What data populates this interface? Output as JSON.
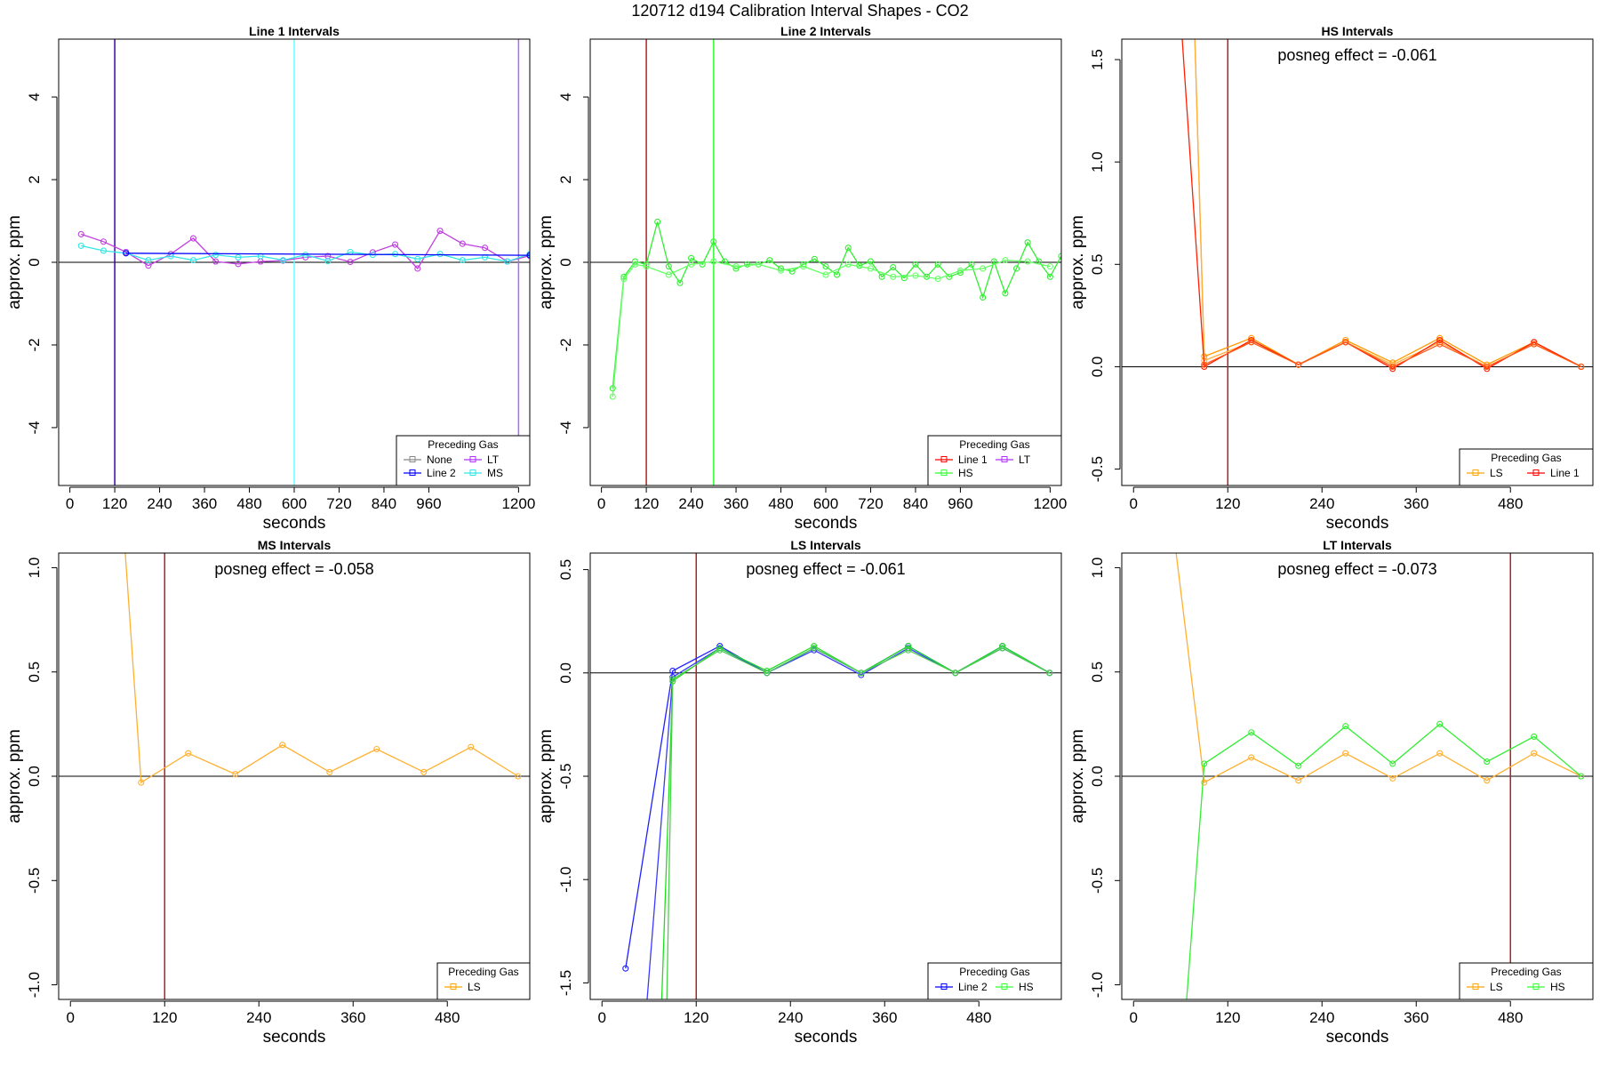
{
  "figure_title": "120712  d194   Calibration Interval Shapes - CO2",
  "chart_data": [
    {
      "type": "line",
      "title": "Line 1 Intervals",
      "xlabel": "seconds",
      "ylabel": "approx. ppm",
      "xlim": [
        -30,
        1230
      ],
      "ylim": [
        -5.4,
        5.4
      ],
      "xticks": [
        0,
        120,
        240,
        360,
        480,
        600,
        720,
        840,
        960,
        1200
      ],
      "yticks": [
        -4,
        -2,
        0,
        2,
        4
      ],
      "annotation": "",
      "vlines": [
        {
          "x": 120,
          "color": "#3f00b3"
        },
        {
          "x": 600,
          "color": "#66ffff"
        },
        {
          "x": 1200,
          "color": "#b266ff"
        }
      ],
      "legend": {
        "title": "Preceding Gas",
        "position": "bottom-right",
        "columns": 2,
        "entries": [
          {
            "label": "None",
            "color": "#888888"
          },
          {
            "label": "Line 2",
            "color": "#0000ff"
          },
          {
            "label": "LT",
            "color": "#b030ff"
          },
          {
            "label": "MS",
            "color": "#33e6e6"
          }
        ]
      },
      "series": [
        {
          "color": "#bf3fdf",
          "x": [
            30,
            90,
            150,
            210,
            270,
            330,
            390,
            450,
            510,
            570,
            630,
            690,
            750,
            810,
            870,
            930,
            990,
            1050,
            1110,
            1170,
            1230
          ],
          "y": [
            0.68,
            0.5,
            0.25,
            -0.08,
            0.2,
            0.58,
            0.02,
            -0.04,
            0.02,
            0.04,
            0.12,
            0.15,
            0.01,
            0.24,
            0.43,
            -0.15,
            0.76,
            0.45,
            0.35,
            0.02,
            0.16
          ]
        },
        {
          "color": "#33e6e6",
          "x": [
            30,
            90,
            150,
            210,
            270,
            330,
            390,
            450,
            510,
            570,
            630,
            690,
            750,
            810,
            870,
            930,
            990,
            1050,
            1110,
            1170,
            1230
          ],
          "y": [
            0.4,
            0.28,
            0.22,
            0.05,
            0.15,
            0.05,
            0.18,
            0.12,
            0.15,
            0.05,
            0.18,
            0.03,
            0.25,
            0.18,
            0.2,
            0.08,
            0.2,
            0.05,
            0.12,
            0.02,
            0.2
          ]
        },
        {
          "color": "#0000ff",
          "x": [
            150,
            1230
          ],
          "y": [
            0.22,
            0.17
          ]
        }
      ]
    },
    {
      "type": "line",
      "title": "Line 2 Intervals",
      "xlabel": "seconds",
      "ylabel": "approx. ppm",
      "xlim": [
        -30,
        1230
      ],
      "ylim": [
        -5.4,
        5.4
      ],
      "xticks": [
        0,
        120,
        240,
        360,
        480,
        600,
        720,
        840,
        960,
        1200
      ],
      "yticks": [
        -4,
        -2,
        0,
        2,
        4
      ],
      "annotation": "",
      "vlines": [
        {
          "x": 120,
          "color": "#b22222"
        },
        {
          "x": 300,
          "color": "#33ff33"
        }
      ],
      "legend": {
        "title": "Preceding Gas",
        "position": "bottom-right",
        "columns": 2,
        "entries": [
          {
            "label": "Line 1",
            "color": "#ff0000"
          },
          {
            "label": "HS",
            "color": "#33ff33"
          },
          {
            "label": "LT",
            "color": "#b030ff"
          }
        ]
      },
      "series": [
        {
          "color": "#33ee33",
          "x": [
            30,
            60,
            90,
            120,
            150,
            180,
            210,
            240,
            270,
            300,
            330,
            360,
            390,
            420,
            450,
            480,
            510,
            540,
            570,
            600,
            630,
            660,
            690,
            720,
            750,
            780,
            810,
            840,
            870,
            900,
            930,
            960,
            990,
            1020,
            1050,
            1080,
            1110,
            1140,
            1170,
            1200,
            1230
          ],
          "y": [
            -3.05,
            -0.35,
            0.02,
            -0.05,
            0.98,
            -0.1,
            -0.5,
            0.1,
            -0.05,
            0.5,
            0.02,
            -0.15,
            -0.05,
            -0.05,
            0.05,
            -0.15,
            -0.22,
            -0.05,
            0.08,
            -0.1,
            -0.3,
            0.35,
            -0.08,
            0.02,
            -0.35,
            -0.12,
            -0.38,
            -0.05,
            -0.35,
            -0.05,
            -0.35,
            -0.25,
            -0.05,
            -0.85,
            0.02,
            -0.75,
            -0.15,
            0.48,
            0.02,
            -0.35,
            0.15
          ]
        },
        {
          "color": "#66ff66",
          "x": [
            30,
            60,
            90,
            120,
            180,
            240,
            300,
            360,
            420,
            480,
            540,
            600,
            660,
            720,
            780,
            840,
            900,
            960,
            1020,
            1080,
            1140,
            1200
          ],
          "y": [
            -3.25,
            -0.4,
            -0.05,
            -0.1,
            -0.3,
            -0.05,
            0.02,
            -0.1,
            -0.05,
            -0.2,
            -0.1,
            -0.3,
            -0.05,
            -0.15,
            -0.35,
            -0.32,
            -0.4,
            -0.2,
            -0.15,
            0.05,
            0.02,
            -0.1
          ]
        }
      ]
    },
    {
      "type": "line",
      "title": "HS Intervals",
      "xlabel": "seconds",
      "ylabel": "approx. ppm",
      "xlim": [
        -15,
        585
      ],
      "ylim": [
        -0.58,
        1.6
      ],
      "xticks": [
        0,
        120,
        240,
        360,
        480
      ],
      "yticks": [
        -0.5,
        0.0,
        0.5,
        1.0,
        1.5
      ],
      "annotation": "posneg effect = -0.061",
      "vlines": [
        {
          "x": 120,
          "color": "#b22222"
        }
      ],
      "legend": {
        "title": "Preceding Gas",
        "position": "bottom-right",
        "columns": 2,
        "entries": [
          {
            "label": "LS",
            "color": "#ffa500"
          },
          {
            "label": "Line 1",
            "color": "#ff0000"
          }
        ]
      },
      "series": [
        {
          "color": "#ff9900",
          "x": [
            75,
            90,
            150,
            210,
            270,
            330,
            390,
            450,
            510,
            570
          ],
          "y": [
            2.0,
            0.05,
            0.14,
            0.01,
            0.13,
            0.02,
            0.14,
            0.01,
            0.12,
            0.0
          ]
        },
        {
          "color": "#ffb040",
          "x": [
            75,
            90,
            150,
            210,
            270,
            330,
            390,
            450,
            510,
            570
          ],
          "y": [
            2.0,
            0.03,
            0.12,
            0.01,
            0.12,
            0.01,
            0.12,
            0.0,
            0.11,
            0.0
          ]
        },
        {
          "color": "#ff2000",
          "x": [
            55,
            90,
            150,
            210,
            270,
            330,
            390,
            450,
            510,
            570
          ],
          "y": [
            2.0,
            0.0,
            0.13,
            0.01,
            0.12,
            -0.01,
            0.13,
            -0.01,
            0.12,
            0.0
          ]
        },
        {
          "color": "#ff5a1a",
          "x": [
            90,
            150,
            210,
            270,
            330,
            390,
            450,
            510,
            570
          ],
          "y": [
            0.01,
            0.12,
            0.01,
            0.12,
            0.0,
            0.11,
            0.0,
            0.11,
            0.0
          ]
        }
      ]
    },
    {
      "type": "line",
      "title": "MS Intervals",
      "xlabel": "seconds",
      "ylabel": "approx. ppm",
      "xlim": [
        -15,
        585
      ],
      "ylim": [
        -1.07,
        1.07
      ],
      "xticks": [
        0,
        120,
        240,
        360,
        480
      ],
      "yticks": [
        -1.0,
        -0.5,
        0.0,
        0.5,
        1.0
      ],
      "annotation": "posneg effect = -0.058",
      "vlines": [
        {
          "x": 120,
          "color": "#b22222"
        }
      ],
      "legend": {
        "title": "Preceding Gas",
        "position": "bottom-right",
        "columns": 1,
        "entries": [
          {
            "label": "LS",
            "color": "#ffa500"
          }
        ]
      },
      "series": [
        {
          "color": "#ffb030",
          "x": [
            60,
            90,
            150,
            210,
            270,
            330,
            390,
            450,
            510,
            570
          ],
          "y": [
            1.6,
            -0.03,
            0.11,
            0.01,
            0.15,
            0.02,
            0.13,
            0.02,
            0.14,
            0.0
          ]
        }
      ]
    },
    {
      "type": "line",
      "title": "LS Intervals",
      "xlabel": "seconds",
      "ylabel": "approx. ppm",
      "xlim": [
        -15,
        585
      ],
      "ylim": [
        -1.58,
        0.58
      ],
      "xticks": [
        0,
        120,
        240,
        360,
        480
      ],
      "yticks": [
        -1.5,
        -1.0,
        -0.5,
        0.0,
        0.5
      ],
      "annotation": "posneg effect = -0.061",
      "vlines": [
        {
          "x": 120,
          "color": "#b22222"
        }
      ],
      "legend": {
        "title": "Preceding Gas",
        "position": "bottom-right",
        "columns": 2,
        "entries": [
          {
            "label": "Line 2",
            "color": "#0000ff"
          },
          {
            "label": "HS",
            "color": "#33ff33"
          }
        ]
      },
      "series": [
        {
          "color": "#2020ff",
          "x": [
            30,
            90,
            150,
            210,
            270,
            330,
            390,
            450,
            510,
            570
          ],
          "y": [
            -1.43,
            0.01,
            0.13,
            0.0,
            0.12,
            0.0,
            0.13,
            0.0,
            0.13,
            0.0
          ]
        },
        {
          "color": "#3a3aff",
          "x": [
            55,
            90,
            150,
            210,
            270,
            330,
            390,
            450,
            510,
            570
          ],
          "y": [
            -1.7,
            -0.02,
            0.12,
            0.0,
            0.11,
            -0.01,
            0.12,
            0.0,
            0.12,
            0.0
          ]
        },
        {
          "color": "#22dd22",
          "x": [
            75,
            90,
            150,
            210,
            270,
            330,
            390,
            450,
            510,
            570
          ],
          "y": [
            -1.7,
            -0.04,
            0.12,
            0.01,
            0.13,
            0.0,
            0.13,
            0.0,
            0.13,
            0.0
          ]
        },
        {
          "color": "#4ccf4c",
          "x": [
            82,
            90,
            150,
            210,
            270,
            330,
            390,
            450,
            510,
            570
          ],
          "y": [
            -1.7,
            -0.03,
            0.11,
            0.0,
            0.12,
            0.0,
            0.11,
            0.0,
            0.12,
            0.0
          ]
        }
      ]
    },
    {
      "type": "line",
      "title": "LT Intervals",
      "xlabel": "seconds",
      "ylabel": "approx. ppm",
      "xlim": [
        -15,
        585
      ],
      "ylim": [
        -1.07,
        1.07
      ],
      "xticks": [
        0,
        120,
        240,
        360,
        480
      ],
      "yticks": [
        -1.0,
        -0.5,
        0.0,
        0.5,
        1.0
      ],
      "annotation": "posneg effect = -0.073",
      "vlines": [
        {
          "x": 480,
          "color": "#b22222"
        }
      ],
      "legend": {
        "title": "Preceding Gas",
        "position": "bottom-right",
        "columns": 2,
        "entries": [
          {
            "label": "LS",
            "color": "#ffa500"
          },
          {
            "label": "HS",
            "color": "#33ff33"
          }
        ]
      },
      "series": [
        {
          "color": "#ffb030",
          "x": [
            50,
            90,
            150,
            210,
            270,
            330,
            390,
            450,
            510,
            570
          ],
          "y": [
            1.2,
            -0.03,
            0.09,
            -0.02,
            0.11,
            -0.01,
            0.11,
            -0.02,
            0.11,
            0.0
          ]
        },
        {
          "color": "#33ee33",
          "x": [
            65,
            90,
            150,
            210,
            270,
            330,
            390,
            450,
            510,
            570
          ],
          "y": [
            -1.2,
            0.06,
            0.21,
            0.05,
            0.24,
            0.06,
            0.25,
            0.07,
            0.19,
            0.0
          ]
        }
      ]
    }
  ]
}
